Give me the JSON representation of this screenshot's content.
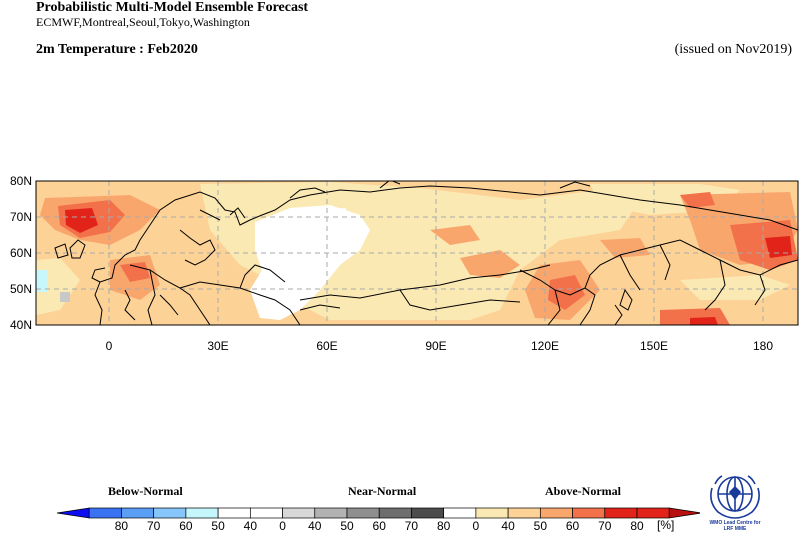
{
  "header": {
    "title": "Probabilistic Multi-Model Ensemble Forecast",
    "subtitle": "ECMWF,Montreal,Seoul,Tokyo,Washington",
    "variable": "2m Temperature : Feb2020",
    "issued": "(issued on Nov2019)"
  },
  "map": {
    "lat_range": [
      40,
      80
    ],
    "lon_range": [
      -20,
      190
    ],
    "lat_labels": [
      "80N",
      "70N",
      "60N",
      "50N",
      "40N"
    ],
    "lon_labels": [
      "0",
      "30E",
      "60E",
      "90E",
      "120E",
      "150E",
      "180"
    ],
    "gridlines": "dashed",
    "colors": {
      "above_40_50": "#fbe9b3",
      "above_50_60": "#fcd296",
      "above_60_70": "#f9a66d",
      "above_70_80": "#f2704a",
      "above_80": "#e2231a",
      "below_40_50": "#c8f7fb",
      "near_40_50": "#c8c8c8",
      "normal": "#ffffff",
      "coast": "#000000",
      "grid": "#aaaaaa"
    }
  },
  "legend": {
    "below_label": "Below-Normal",
    "near_label": "Near-Normal",
    "above_label": "Above-Normal",
    "unit": "[%]",
    "tick_labels": [
      "80",
      "70",
      "60",
      "50",
      "40",
      "0",
      "40",
      "50",
      "60",
      "70",
      "80",
      "0",
      "40",
      "50",
      "60",
      "70",
      "80"
    ],
    "colors": [
      "#0d0df0",
      "#3a73f2",
      "#5a9ef5",
      "#86c6fa",
      "#c4f6fb",
      "#ffffff",
      "#ffffff",
      "#d8d8d8",
      "#b2b2b2",
      "#8f8f8f",
      "#6e6e6e",
      "#4c4c4c",
      "#ffffff",
      "#fbe9b3",
      "#fcd296",
      "#f9a66d",
      "#f2704a",
      "#e2231a",
      "#b81010"
    ]
  },
  "logo": {
    "text_line1": "WMO Lead Centre for",
    "text_line2": "LRF MME"
  }
}
